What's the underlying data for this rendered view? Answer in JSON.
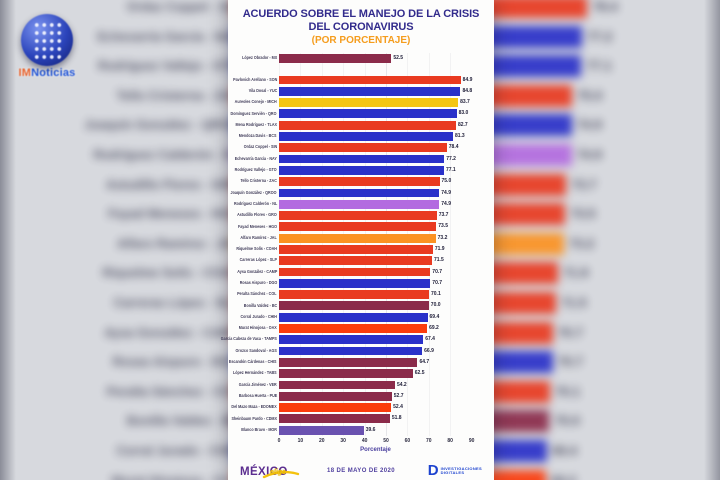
{
  "watermark": {
    "prefix": "IM",
    "name": "Noticias"
  },
  "chart_data": {
    "type": "bar",
    "orientation": "horizontal",
    "title": "ACUERDO SOBRE EL MANEJO DE LA CRISIS DEL CORONAVIRUS",
    "subtitle": "(POR PORCENTAJE)",
    "xlabel": "Porcentaje",
    "xlim": [
      0,
      90
    ],
    "xticks": [
      0,
      10,
      20,
      30,
      40,
      50,
      60,
      70,
      80,
      90
    ],
    "grid": "vertical-light",
    "legend": "none",
    "president": {
      "label": "López Obrador - MX",
      "value": 52.5,
      "color": "maroon"
    },
    "governors": [
      {
        "label": "Pavlovich Arellano - SON",
        "value": 84.9,
        "color": "red"
      },
      {
        "label": "Vila Dosal - YUC",
        "value": 84.8,
        "color": "blue"
      },
      {
        "label": "Aureoles Conejo - MICH",
        "value": 83.7,
        "color": "yellow"
      },
      {
        "label": "Domínguez Servién - QRO",
        "value": 83.0,
        "color": "blue"
      },
      {
        "label": "Mena Rodríguez - TLAX",
        "value": 82.7,
        "color": "red"
      },
      {
        "label": "Mendoza Davis - BCS",
        "value": 81.3,
        "color": "blue"
      },
      {
        "label": "Ordaz Coppel - SIN",
        "value": 78.4,
        "color": "red"
      },
      {
        "label": "Echevarría García - NAY",
        "value": 77.2,
        "color": "blue"
      },
      {
        "label": "Rodríguez Vallejo - GTO",
        "value": 77.1,
        "color": "blue"
      },
      {
        "label": "Tello Cristerna - ZAC",
        "value": 75.0,
        "color": "red"
      },
      {
        "label": "Joaquín González - QROO",
        "value": 74.9,
        "color": "blue"
      },
      {
        "label": "Rodríguez Calderón - NL",
        "value": 74.9,
        "color": "lilac"
      },
      {
        "label": "Astudillo Flores - GRO",
        "value": 73.7,
        "color": "red"
      },
      {
        "label": "Fayad Meneses - HGO",
        "value": 73.5,
        "color": "red"
      },
      {
        "label": "Alfaro Ramírez - JAL",
        "value": 73.2,
        "color": "orange"
      },
      {
        "label": "Riquelme Solís - COAH",
        "value": 71.9,
        "color": "red"
      },
      {
        "label": "Carreras López - SLP",
        "value": 71.5,
        "color": "red"
      },
      {
        "label": "Aysa González - CAMP",
        "value": 70.7,
        "color": "red"
      },
      {
        "label": "Rosas Aispuro - DGO",
        "value": 70.7,
        "color": "blue"
      },
      {
        "label": "Peralta Sánchez - COL",
        "value": 70.1,
        "color": "red"
      },
      {
        "label": "Bonilla Valdez - BC",
        "value": 70.0,
        "color": "maroon"
      },
      {
        "label": "Corral Jurado - CHIH",
        "value": 69.4,
        "color": "blue"
      },
      {
        "label": "Murat Hinojosa - OAX",
        "value": 69.2,
        "color": "brightred"
      },
      {
        "label": "García Cabeza de Vaca - TAMPS",
        "value": 67.4,
        "color": "blue"
      },
      {
        "label": "Orozco Sandoval - AGS",
        "value": 66.9,
        "color": "blue"
      },
      {
        "label": "Escandón Cárdenas - CHIS",
        "value": 64.7,
        "color": "maroon"
      },
      {
        "label": "López Hernández - TABS",
        "value": 62.5,
        "color": "maroon"
      },
      {
        "label": "García Jiménez - VER",
        "value": 54.2,
        "color": "maroon"
      },
      {
        "label": "Barbosa Huerta - PUE",
        "value": 52.7,
        "color": "maroon"
      },
      {
        "label": "Del Mazo Maza - EDOMEX",
        "value": 52.4,
        "color": "brightred"
      },
      {
        "label": "Sheinbaum Pardo - CDMX",
        "value": 51.8,
        "color": "maroon"
      },
      {
        "label": "Blanco Bravo - MOR",
        "value": 39.6,
        "color": "purple"
      }
    ],
    "colors": {
      "maroon": "#8b2b4a",
      "red": "#e93a20",
      "brightred": "#fb3c0c",
      "blue": "#2a31c9",
      "yellow": "#f4c614",
      "orange": "#fb9222",
      "lilac": "#b36be0",
      "purple": "#6a52b0"
    },
    "background_visible_rows": {
      "from_governor_index": 6,
      "to_governor_index": 22
    }
  },
  "footer": {
    "date": "18 DE MAYO DE 2020",
    "left_logo": {
      "text": "MÉXICO",
      "script": "elige"
    },
    "right_logo": {
      "letter": "D",
      "line1": "INVESTIGACIONES",
      "line2": "DIGITALES"
    }
  }
}
